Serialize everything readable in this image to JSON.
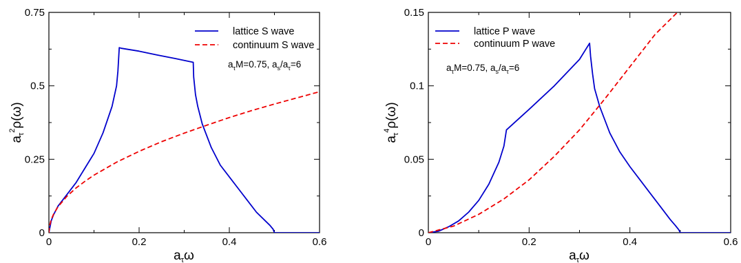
{
  "chart_data": [
    {
      "type": "line",
      "xlabel": "a_τω",
      "ylabel": "a_τ²ρ(ω)",
      "xlim": [
        0,
        0.6
      ],
      "ylim": [
        0,
        0.75
      ],
      "xticks": [
        0,
        0.2,
        0.4,
        0.6
      ],
      "xtick_labels": [
        "0",
        "0.2",
        "0.4",
        "0.6"
      ],
      "yticks": [
        0,
        0.25,
        0.5,
        0.75
      ],
      "ytick_labels": [
        "0",
        "0.25",
        "0.5",
        "0.75"
      ],
      "grid": false,
      "legend_position": "top-right",
      "annotation": "a_τM=0.75, a_s/a_τ=6",
      "series": [
        {
          "name": "lattice S wave",
          "color": "#0000cc",
          "style": "solid",
          "points": [
            [
              0,
              0
            ],
            [
              0.005,
              0.04
            ],
            [
              0.01,
              0.06
            ],
            [
              0.02,
              0.09
            ],
            [
              0.04,
              0.13
            ],
            [
              0.06,
              0.17
            ],
            [
              0.08,
              0.22
            ],
            [
              0.1,
              0.27
            ],
            [
              0.12,
              0.34
            ],
            [
              0.14,
              0.43
            ],
            [
              0.15,
              0.5
            ],
            [
              0.153,
              0.55
            ],
            [
              0.156,
              0.63
            ],
            [
              0.16,
              0.628
            ],
            [
              0.2,
              0.618
            ],
            [
              0.24,
              0.605
            ],
            [
              0.28,
              0.593
            ],
            [
              0.32,
              0.58
            ],
            [
              0.321,
              0.53
            ],
            [
              0.325,
              0.47
            ],
            [
              0.33,
              0.43
            ],
            [
              0.34,
              0.37
            ],
            [
              0.36,
              0.29
            ],
            [
              0.38,
              0.23
            ],
            [
              0.4,
              0.19
            ],
            [
              0.42,
              0.15
            ],
            [
              0.44,
              0.11
            ],
            [
              0.46,
              0.07
            ],
            [
              0.48,
              0.04
            ],
            [
              0.49,
              0.025
            ],
            [
              0.497,
              0.012
            ],
            [
              0.5,
              0.0
            ],
            [
              0.6,
              0.0
            ]
          ]
        },
        {
          "name": "continuum S wave",
          "color": "#ee0000",
          "style": "dashed",
          "points": [
            [
              0,
              0
            ],
            [
              0.001,
              0.02
            ],
            [
              0.005,
              0.044
            ],
            [
              0.01,
              0.062
            ],
            [
              0.02,
              0.088
            ],
            [
              0.04,
              0.124
            ],
            [
              0.06,
              0.152
            ],
            [
              0.08,
              0.175
            ],
            [
              0.1,
              0.196
            ],
            [
              0.15,
              0.24
            ],
            [
              0.2,
              0.277
            ],
            [
              0.25,
              0.31
            ],
            [
              0.3,
              0.339
            ],
            [
              0.35,
              0.366
            ],
            [
              0.4,
              0.392
            ],
            [
              0.45,
              0.416
            ],
            [
              0.5,
              0.438
            ],
            [
              0.55,
              0.459
            ],
            [
              0.6,
              0.48
            ]
          ]
        }
      ]
    },
    {
      "type": "line",
      "xlabel": "a_τω",
      "ylabel": "a_τ⁴ρ(ω)",
      "xlim": [
        0,
        0.6
      ],
      "ylim": [
        0,
        0.15
      ],
      "xticks": [
        0,
        0.2,
        0.4,
        0.6
      ],
      "xtick_labels": [
        "0",
        "0.2",
        "0.4",
        "0.6"
      ],
      "yticks": [
        0,
        0.05,
        0.1,
        0.15
      ],
      "ytick_labels": [
        "0",
        "0.05",
        "0.1",
        "0.15"
      ],
      "grid": false,
      "legend_position": "top-left",
      "annotation": "a_τM=0.75, a_s/a_τ=6",
      "series": [
        {
          "name": "lattice P wave",
          "color": "#0000cc",
          "style": "solid",
          "points": [
            [
              0,
              0
            ],
            [
              0.02,
              0.001
            ],
            [
              0.04,
              0.004
            ],
            [
              0.06,
              0.008
            ],
            [
              0.08,
              0.014
            ],
            [
              0.1,
              0.022
            ],
            [
              0.12,
              0.033
            ],
            [
              0.14,
              0.048
            ],
            [
              0.15,
              0.059
            ],
            [
              0.155,
              0.07
            ],
            [
              0.2,
              0.084
            ],
            [
              0.25,
              0.1
            ],
            [
              0.3,
              0.118
            ],
            [
              0.32,
              0.129
            ],
            [
              0.322,
              0.12
            ],
            [
              0.326,
              0.108
            ],
            [
              0.33,
              0.098
            ],
            [
              0.34,
              0.086
            ],
            [
              0.36,
              0.068
            ],
            [
              0.38,
              0.055
            ],
            [
              0.4,
              0.045
            ],
            [
              0.42,
              0.036
            ],
            [
              0.44,
              0.027
            ],
            [
              0.46,
              0.018
            ],
            [
              0.48,
              0.009
            ],
            [
              0.49,
              0.005
            ],
            [
              0.497,
              0.002
            ],
            [
              0.5,
              0.0
            ],
            [
              0.6,
              0.0
            ]
          ]
        },
        {
          "name": "continuum P wave",
          "color": "#ee0000",
          "style": "dashed",
          "points": [
            [
              0,
              0
            ],
            [
              0.05,
              0.0045
            ],
            [
              0.1,
              0.0125
            ],
            [
              0.15,
              0.023
            ],
            [
              0.2,
              0.036
            ],
            [
              0.25,
              0.052
            ],
            [
              0.3,
              0.07
            ],
            [
              0.35,
              0.091
            ],
            [
              0.4,
              0.113
            ],
            [
              0.45,
              0.135
            ],
            [
              0.5,
              0.152
            ]
          ]
        }
      ]
    }
  ]
}
